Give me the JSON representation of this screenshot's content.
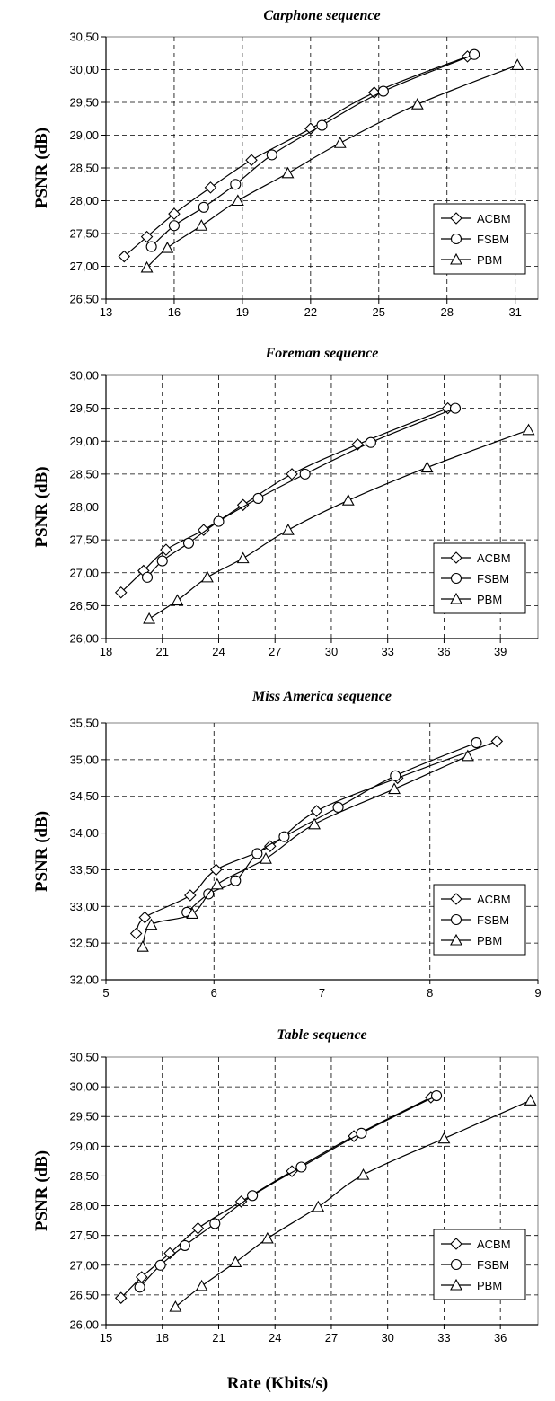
{
  "xlabel": "Rate (Kbits/s)",
  "chart_data": [
    {
      "type": "line",
      "title": "Carphone sequence",
      "ylabel": "PSNR (dB)",
      "xlim": [
        13,
        32
      ],
      "ylim": [
        26.5,
        30.5
      ],
      "xticks": [
        13,
        16,
        19,
        22,
        25,
        28,
        31
      ],
      "xtick_labels": [
        "13",
        "16",
        "19",
        "22",
        "25",
        "28",
        "31"
      ],
      "yticks": [
        26.5,
        27,
        27.5,
        28,
        28.5,
        29,
        29.5,
        30,
        30.5
      ],
      "ytick_labels": [
        "26,50",
        "27,00",
        "27,50",
        "28,00",
        "28,50",
        "29,00",
        "29,50",
        "30,00",
        "30,50"
      ],
      "grid": true,
      "legend": "lower-right",
      "series": [
        {
          "name": "ACBM",
          "marker": "diamond",
          "x": [
            13.8,
            14.8,
            16.0,
            17.6,
            19.4,
            22.0,
            24.8,
            28.9
          ],
          "y": [
            27.15,
            27.45,
            27.8,
            28.2,
            28.62,
            29.1,
            29.65,
            30.2
          ]
        },
        {
          "name": "FSBM",
          "marker": "circle",
          "x": [
            15.0,
            16.0,
            17.3,
            18.7,
            20.3,
            22.5,
            25.2,
            29.2
          ],
          "y": [
            27.3,
            27.62,
            27.9,
            28.25,
            28.7,
            29.15,
            29.67,
            30.23
          ]
        },
        {
          "name": "PBM",
          "marker": "triangle",
          "x": [
            14.8,
            15.7,
            17.2,
            18.8,
            21.0,
            23.3,
            26.7,
            31.1
          ],
          "y": [
            26.98,
            27.28,
            27.62,
            28.0,
            28.42,
            28.88,
            29.47,
            30.07
          ]
        }
      ]
    },
    {
      "type": "line",
      "title": "Foreman sequence",
      "ylabel": "PSNR (dB)",
      "xlim": [
        18,
        41
      ],
      "ylim": [
        26,
        30
      ],
      "xticks": [
        18,
        21,
        24,
        27,
        30,
        33,
        36,
        39
      ],
      "xtick_labels": [
        "18",
        "21",
        "24",
        "27",
        "30",
        "33",
        "36",
        "39"
      ],
      "yticks": [
        26,
        26.5,
        27,
        27.5,
        28,
        28.5,
        29,
        29.5,
        30
      ],
      "ytick_labels": [
        "26,00",
        "26,50",
        "27,00",
        "27,50",
        "28,00",
        "28,50",
        "29,00",
        "29,50",
        "30,00"
      ],
      "grid": true,
      "legend": "lower-right",
      "series": [
        {
          "name": "ACBM",
          "marker": "diamond",
          "x": [
            18.8,
            20.0,
            21.2,
            23.2,
            25.3,
            27.9,
            31.4,
            36.2
          ],
          "y": [
            26.7,
            27.03,
            27.35,
            27.65,
            28.03,
            28.5,
            28.95,
            29.5
          ]
        },
        {
          "name": "FSBM",
          "marker": "circle",
          "x": [
            20.2,
            21.0,
            22.4,
            24.0,
            26.1,
            28.6,
            32.1,
            36.6
          ],
          "y": [
            26.93,
            27.18,
            27.45,
            27.78,
            28.13,
            28.5,
            28.98,
            29.5
          ]
        },
        {
          "name": "PBM",
          "marker": "triangle",
          "x": [
            20.3,
            21.8,
            23.4,
            25.3,
            27.7,
            30.9,
            35.1,
            40.5
          ],
          "y": [
            26.3,
            26.58,
            26.93,
            27.22,
            27.65,
            28.1,
            28.6,
            29.17
          ]
        }
      ]
    },
    {
      "type": "line",
      "title": "Miss America sequence",
      "ylabel": "PSNR (dB)",
      "xlim": [
        5,
        9
      ],
      "ylim": [
        32,
        35.5
      ],
      "xticks": [
        5,
        6,
        7,
        8,
        9
      ],
      "xtick_labels": [
        "5",
        "6",
        "7",
        "8",
        "9"
      ],
      "yticks": [
        32,
        32.5,
        33,
        33.5,
        34,
        34.5,
        35,
        35.5
      ],
      "ytick_labels": [
        "32,00",
        "32,50",
        "33,00",
        "33,50",
        "34,00",
        "34,50",
        "35,00",
        "35,50"
      ],
      "grid": true,
      "legend": "lower-right",
      "series": [
        {
          "name": "ACBM",
          "marker": "diamond",
          "x": [
            5.28,
            5.36,
            5.78,
            6.02,
            6.52,
            6.95,
            7.7,
            8.62
          ],
          "y": [
            32.63,
            32.85,
            33.15,
            33.5,
            33.82,
            34.3,
            34.75,
            35.25
          ]
        },
        {
          "name": "FSBM",
          "marker": "circle",
          "x": [
            5.75,
            5.95,
            6.2,
            6.4,
            6.65,
            7.15,
            7.68,
            8.43
          ],
          "y": [
            32.92,
            33.17,
            33.35,
            33.72,
            33.95,
            34.35,
            34.78,
            35.23
          ]
        },
        {
          "name": "PBM",
          "marker": "triangle",
          "x": [
            5.34,
            5.42,
            5.8,
            6.03,
            6.48,
            6.93,
            7.67,
            8.35
          ],
          "y": [
            32.45,
            32.75,
            32.9,
            33.3,
            33.65,
            34.12,
            34.6,
            35.05
          ]
        }
      ]
    },
    {
      "type": "line",
      "title": "Table sequence",
      "ylabel": "PSNR (dB)",
      "xlim": [
        15,
        38
      ],
      "ylim": [
        26,
        30.5
      ],
      "xticks": [
        15,
        18,
        21,
        24,
        27,
        30,
        33,
        36
      ],
      "xtick_labels": [
        "15",
        "18",
        "21",
        "24",
        "27",
        "30",
        "33",
        "36"
      ],
      "yticks": [
        26,
        26.5,
        27,
        27.5,
        28,
        28.5,
        29,
        29.5,
        30,
        30.5
      ],
      "ytick_labels": [
        "26,00",
        "26,50",
        "27,00",
        "27,50",
        "28,00",
        "28,50",
        "29,00",
        "29,50",
        "30,00",
        "30,50"
      ],
      "grid": true,
      "legend": "lower-right",
      "series": [
        {
          "name": "ACBM",
          "marker": "diamond",
          "x": [
            15.8,
            16.9,
            18.4,
            19.9,
            22.2,
            24.9,
            28.2,
            32.3
          ],
          "y": [
            26.45,
            26.8,
            27.2,
            27.62,
            28.07,
            28.58,
            29.17,
            29.82
          ]
        },
        {
          "name": "FSBM",
          "marker": "circle",
          "x": [
            16.8,
            17.9,
            19.2,
            20.8,
            22.8,
            25.4,
            28.6,
            32.6
          ],
          "y": [
            26.63,
            27.0,
            27.33,
            27.7,
            28.17,
            28.65,
            29.22,
            29.85
          ]
        },
        {
          "name": "PBM",
          "marker": "triangle",
          "x": [
            18.7,
            20.1,
            21.9,
            23.6,
            26.3,
            28.7,
            33.0,
            37.6
          ],
          "y": [
            26.3,
            26.65,
            27.05,
            27.45,
            27.98,
            28.52,
            29.13,
            29.77
          ]
        }
      ]
    }
  ]
}
